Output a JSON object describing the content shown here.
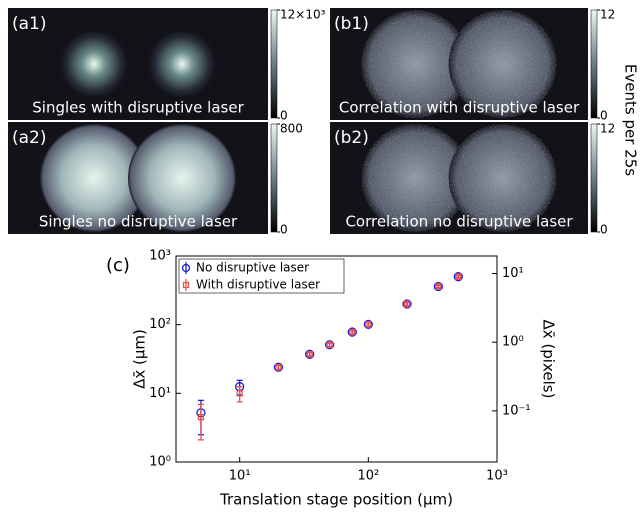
{
  "panels": [
    {
      "label": "(a1)",
      "caption": "Singles with disruptive laser",
      "cbar_ticks": [
        {
          "value": 12000,
          "label": "12×10³"
        },
        0
      ]
    },
    {
      "label": "(a2)",
      "caption": "Singles no disruptive laser",
      "cbar_ticks": [
        800,
        0
      ]
    },
    {
      "label": "(b1)",
      "caption": "Correlation with disruptive laser",
      "cbar_ticks": [
        12,
        0
      ]
    },
    {
      "label": "(b2)",
      "caption": "Correlation no disruptive laser",
      "cbar_ticks": [
        12,
        0
      ]
    }
  ],
  "cbar_label": "Events per 25s",
  "chart_data": {
    "type": "scatter",
    "panel_label": "(c)",
    "x_label": "Translation stage position (μm)",
    "y_label": "Δx̄ (μm)",
    "y2_label": "Δx̄ (pixels)",
    "x": [
      5,
      10,
      20,
      35,
      50,
      75,
      100,
      200,
      350,
      500
    ],
    "series": [
      {
        "name": "No disruptive laser",
        "color": "#1f1fd6",
        "marker": "circle",
        "values": [
          5.2,
          12.5,
          24,
          37,
          51,
          78,
          101,
          200,
          360,
          500
        ],
        "errors": [
          2.7,
          3,
          1.5,
          2,
          3,
          4,
          6,
          10,
          15,
          20
        ]
      },
      {
        "name": "With disruptive laser",
        "color": "#e8514f",
        "marker": "square",
        "values": [
          4.5,
          10,
          24,
          37,
          51,
          78,
          101,
          200,
          360,
          500
        ],
        "errors": [
          2.4,
          2.5,
          1.5,
          2,
          3,
          4,
          6,
          10,
          15,
          20
        ]
      }
    ],
    "log_x": true,
    "log_y": true,
    "xlim": [
      3.2,
      1000
    ],
    "xticks": [
      {
        "value": 10,
        "label": "10¹"
      },
      {
        "value": 100,
        "label": "10²"
      },
      {
        "value": 1000,
        "label": "10³"
      }
    ],
    "ylim": [
      1,
      1000
    ],
    "yticks": [
      {
        "value": 1,
        "label": "10⁰"
      },
      {
        "value": 10,
        "label": "10¹"
      },
      {
        "value": 100,
        "label": "10²"
      },
      {
        "value": 1000,
        "label": "10³"
      }
    ],
    "y2lim": [
      0.018,
      18
    ],
    "y2ticks": [
      {
        "value": 0.1,
        "label": "10⁻¹"
      },
      {
        "value": 1,
        "label": "10⁰"
      },
      {
        "value": 10,
        "label": "10¹"
      }
    ],
    "legend": "upper-left"
  }
}
